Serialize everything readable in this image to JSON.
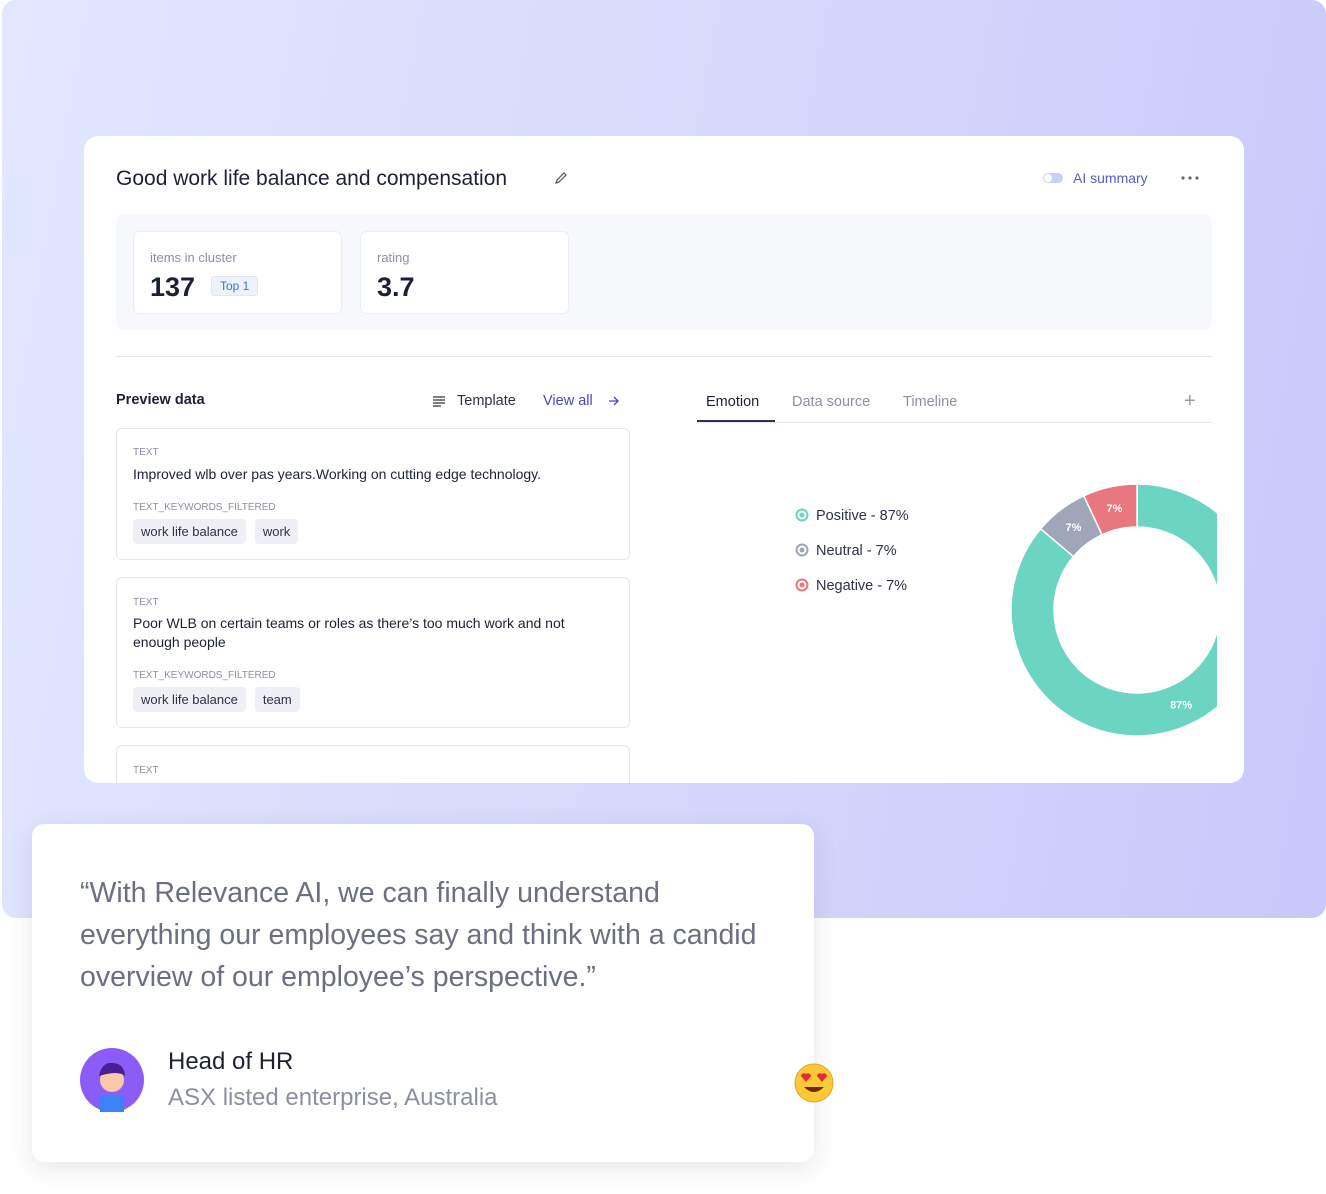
{
  "card": {
    "title": "Good work life balance and compensation",
    "ai_summary": "AI summary",
    "stats": [
      {
        "label": "items in cluster",
        "value": 137,
        "badge": "Top 1"
      },
      {
        "label": "rating",
        "value": 3.7
      }
    ],
    "preview": {
      "title": "Preview data",
      "template": "Template",
      "view_all": "View all",
      "items": [
        {
          "field": "TEXT",
          "text": "Improved wlb over pas years.Working on cutting edge technology.",
          "keywords_field": "TEXT_KEYWORDS_FILTERED",
          "keywords": [
            "work life balance",
            "work"
          ]
        },
        {
          "field": "TEXT",
          "text": "Poor WLB on certain teams or roles as there’s too much work and not enough people",
          "keywords_field": "TEXT_KEYWORDS_FILTERED",
          "keywords": [
            "work life balance",
            "team"
          ]
        },
        {
          "field": "TEXT"
        }
      ]
    },
    "tabs": [
      "Emotion",
      "Data source",
      "Timeline"
    ]
  },
  "chart_data": {
    "type": "pie",
    "labels": [
      "Positive - 87%",
      "Neutral - 7%",
      "Negative - 7%"
    ],
    "values": [
      87,
      7,
      7
    ],
    "value_labels": [
      "87%",
      "7%",
      "7%"
    ],
    "colors": [
      "#6bd5c2",
      "#9ea6b8",
      "#e8777f"
    ]
  },
  "testimonial": {
    "quote": "“With Relevance AI, we can finally understand everything our employees say and think with a candid overview of our employee’s perspective.”",
    "role": "Head of HR",
    "company": "ASX listed enterprise, Australia"
  }
}
